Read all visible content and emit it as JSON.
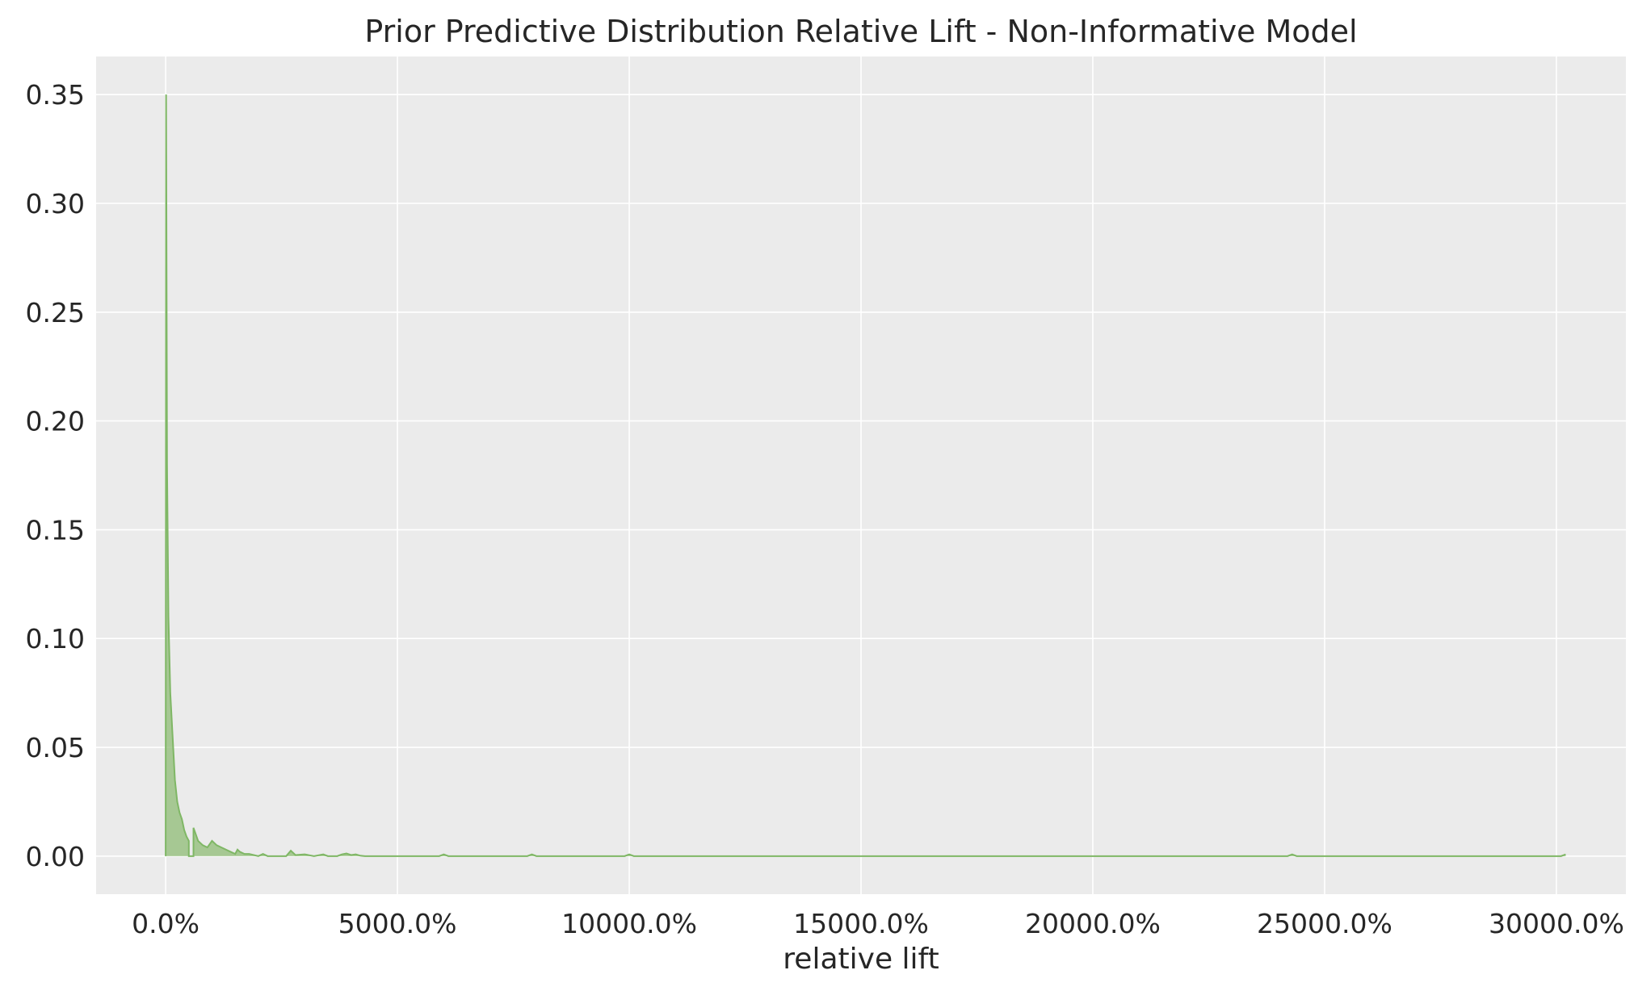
{
  "chart_data": {
    "type": "area",
    "title": "Prior Predictive Distribution Relative Lift - Non-Informative Model",
    "xlabel": "relative lift",
    "ylabel": "",
    "xlim": [
      -1500,
      31500
    ],
    "ylim": [
      -0.0175,
      0.3675
    ],
    "x_ticks": [
      0,
      5000,
      10000,
      15000,
      20000,
      25000,
      30000
    ],
    "x_tick_labels": [
      "0.0%",
      "5000.0%",
      "10000.0%",
      "15000.0%",
      "20000.0%",
      "25000.0%",
      "30000.0%"
    ],
    "y_ticks": [
      0.0,
      0.05,
      0.1,
      0.15,
      0.2,
      0.25,
      0.3,
      0.35
    ],
    "y_tick_labels": [
      "0.00",
      "0.05",
      "0.10",
      "0.15",
      "0.20",
      "0.25",
      "0.30",
      "0.35"
    ],
    "grid": true,
    "legend": "none",
    "colors": {
      "fill": "#8fbc75",
      "line": "#7fb765",
      "background": "#ebebeb",
      "grid": "#ffffff"
    },
    "series": [
      {
        "x": [
          0,
          10,
          30,
          60,
          100,
          150,
          200,
          250,
          300,
          350,
          400,
          450,
          500,
          500,
          600,
          600,
          700,
          800,
          900,
          1000,
          1100,
          1200,
          1300,
          1400,
          1500,
          1550,
          1600,
          1700,
          1800,
          1900,
          2000,
          2100,
          2200,
          2400,
          2600,
          2700,
          2800,
          3000,
          3200,
          3400,
          3500,
          3700,
          3800,
          3900,
          4000,
          4100,
          4200,
          4300,
          5900,
          6000,
          6100,
          7800,
          7900,
          8000,
          9900,
          10000,
          10100,
          24200,
          24300,
          24400,
          30100,
          30200
        ],
        "y": [
          0,
          0.35,
          0.18,
          0.11,
          0.075,
          0.055,
          0.035,
          0.025,
          0.02,
          0.017,
          0.012,
          0.009,
          0.007,
          0,
          0,
          0.013,
          0.007,
          0.005,
          0.004,
          0.007,
          0.005,
          0.004,
          0.003,
          0.002,
          0.001,
          0.003,
          0.002,
          0.001,
          0.001,
          0.0005,
          0,
          0.001,
          0,
          0,
          0,
          0.0025,
          0.0005,
          0.0008,
          0,
          0.0008,
          0,
          0,
          0.0008,
          0.0012,
          0.0005,
          0.0008,
          0.0002,
          0,
          0,
          0.0008,
          0,
          0,
          0.0008,
          0,
          0,
          0.0008,
          0,
          0,
          0.0008,
          0,
          0,
          0.0008
        ]
      }
    ]
  }
}
